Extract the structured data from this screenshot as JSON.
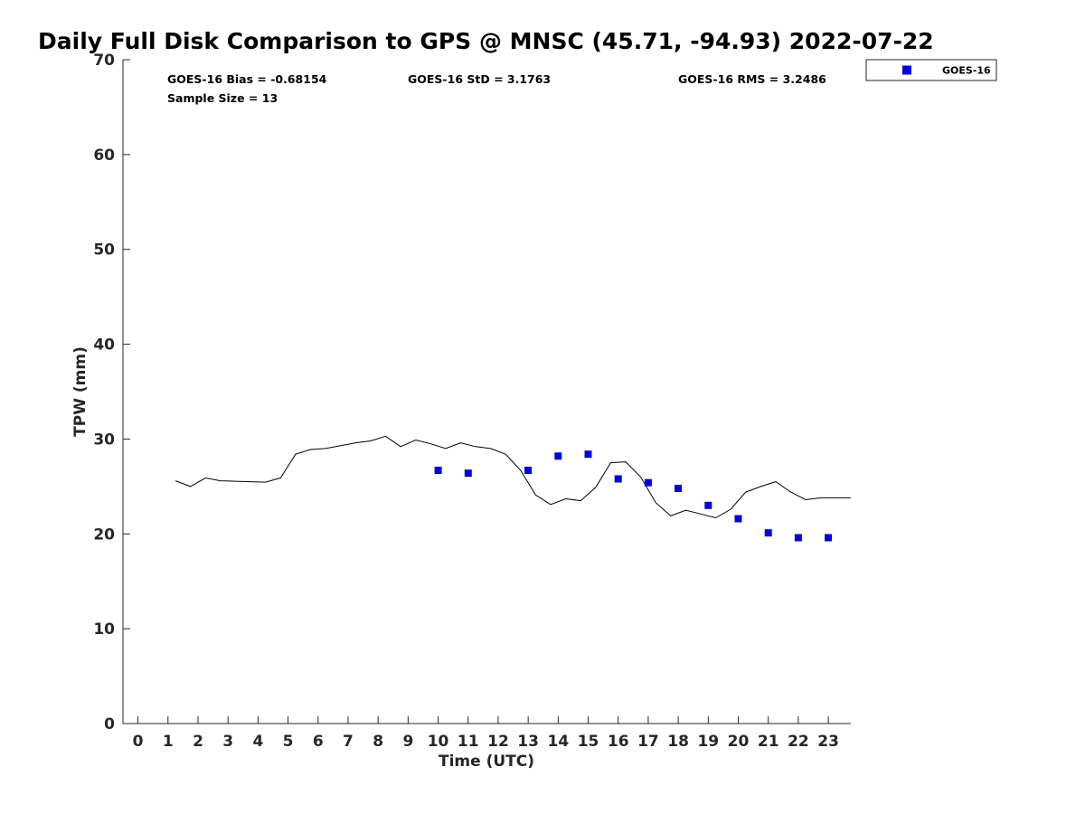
{
  "chart_data": {
    "type": "scatter",
    "title": "Daily Full Disk Comparison to GPS @ MNSC (45.71, -94.93) 2022-07-22",
    "xlabel": "Time (UTC)",
    "ylabel": "TPW (mm)",
    "xlim": [
      -0.5,
      23.75
    ],
    "ylim": [
      0,
      70
    ],
    "xticks": [
      0,
      1,
      2,
      3,
      4,
      5,
      6,
      7,
      8,
      9,
      10,
      11,
      12,
      13,
      14,
      15,
      16,
      17,
      18,
      19,
      20,
      21,
      22,
      23
    ],
    "yticks": [
      0,
      10,
      20,
      30,
      40,
      50,
      60,
      70
    ],
    "legend": {
      "position": "top-right, outside plot",
      "entries": [
        "GOES-16"
      ]
    },
    "stats": {
      "bias": "GOES-16 Bias = -0.68154",
      "std": "GOES-16 StD = 3.1763",
      "rms": "GOES-16 RMS = 3.2486",
      "sample": "Sample Size = 13"
    },
    "series": [
      {
        "name": "GPS",
        "kind": "line",
        "color": "#000000",
        "x": [
          1.25,
          1.75,
          2.25,
          2.75,
          3.25,
          3.75,
          4.25,
          4.75,
          5.25,
          5.75,
          6.25,
          6.75,
          7.25,
          7.75,
          8.25,
          8.75,
          9.25,
          9.75,
          10.25,
          10.75,
          11.25,
          11.75,
          12.25,
          12.75,
          13.25,
          13.75,
          14.25,
          14.75,
          15.25,
          15.75,
          16.25,
          16.75,
          17.25,
          17.75,
          18.25,
          18.75,
          19.25,
          19.75,
          20.25,
          20.75,
          21.25,
          21.75,
          22.25,
          22.75,
          23.25,
          23.75
        ],
        "y": [
          25.6,
          25.0,
          25.9,
          25.6,
          25.55,
          25.5,
          25.45,
          25.9,
          28.4,
          28.9,
          29.0,
          29.3,
          29.6,
          29.8,
          30.3,
          29.2,
          29.9,
          29.5,
          29.0,
          29.6,
          29.2,
          29.0,
          28.4,
          26.7,
          24.1,
          23.1,
          23.7,
          23.5,
          24.9,
          27.5,
          27.6,
          26.0,
          23.3,
          21.9,
          22.5,
          22.1,
          21.7,
          22.6,
          24.4,
          25.0,
          25.5,
          24.4,
          23.6,
          23.8,
          23.8,
          23.8
        ]
      },
      {
        "name": "GOES-16",
        "kind": "scatter",
        "color": "#0000dd",
        "x": [
          10,
          11,
          13,
          14,
          15,
          16,
          17,
          18,
          19,
          20,
          21,
          22,
          23
        ],
        "y": [
          26.7,
          26.4,
          26.7,
          28.2,
          28.4,
          25.8,
          25.4,
          24.8,
          23.0,
          21.6,
          20.1,
          19.6,
          19.6
        ]
      }
    ]
  }
}
